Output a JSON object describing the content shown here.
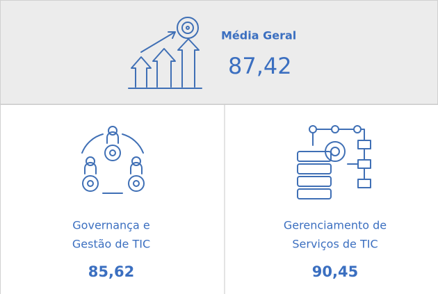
{
  "summary": {
    "title": "Média Geral",
    "value": "87,42"
  },
  "cards": [
    {
      "label_lines": [
        "Governança e",
        "Gestão de TIC"
      ],
      "value": "85,62"
    },
    {
      "label_lines": [
        "Gerenciamento de",
        "Serviços de TIC"
      ],
      "value": "90,45"
    }
  ]
}
